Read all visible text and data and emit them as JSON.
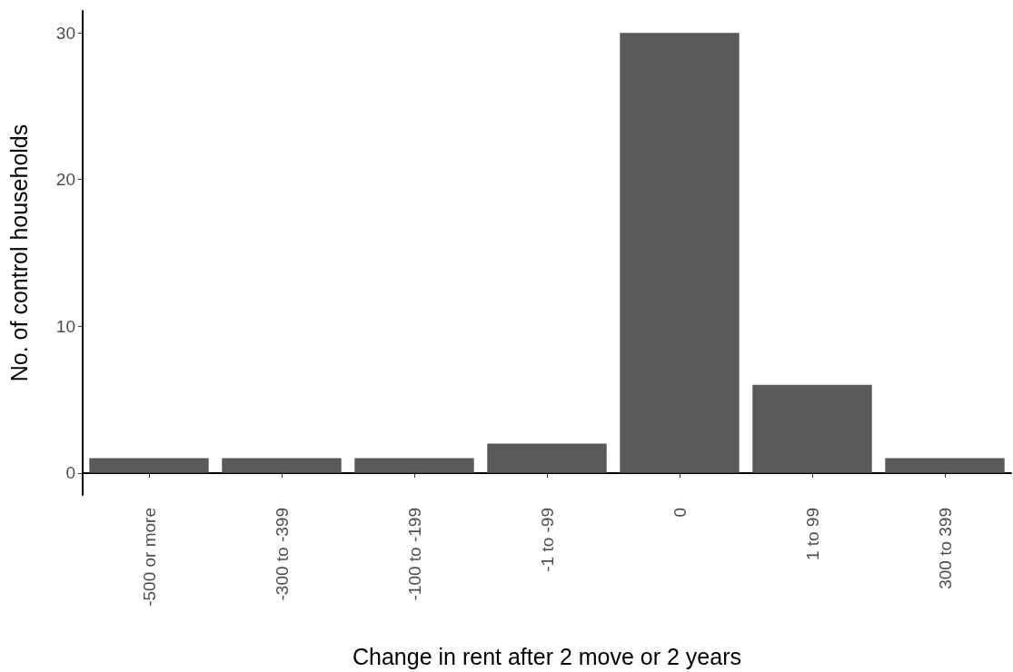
{
  "chart_data": {
    "type": "bar",
    "xlabel": "Change in rent after 2 move or 2 years",
    "ylabel": "No. of control households",
    "categories": [
      "-500 or more",
      "-300 to -399",
      "-100 to -199",
      "-1 to -99",
      "0",
      "1 to 99",
      "300 to 399"
    ],
    "values": [
      1,
      1,
      1,
      2,
      30,
      6,
      1
    ],
    "color": "#595959",
    "ylim": [
      -1.5,
      31.5
    ],
    "yticks": [
      0,
      10,
      20,
      30
    ],
    "grid": false
  }
}
